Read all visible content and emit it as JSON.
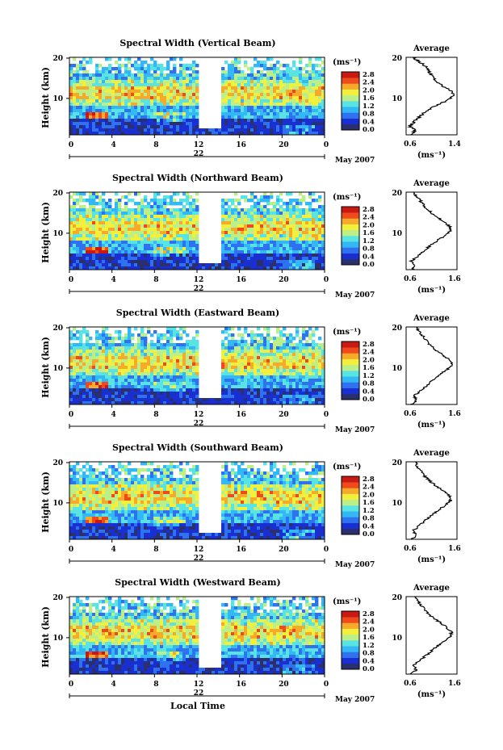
{
  "panels": [
    {
      "title": "Spectral Width (Vertical Beam)",
      "ylabel": "Height (km)",
      "yticks": [
        "20",
        "10"
      ],
      "xticks": [
        "0",
        "4",
        "8",
        "12",
        "16",
        "20",
        "0"
      ],
      "day": "22",
      "month": "May 2007",
      "cb_unit": "(ms⁻¹)",
      "cb_ticks": [
        "2.8",
        "2.4",
        "2.0",
        "1.6",
        "1.2",
        "0.8",
        "0.4",
        "0.0"
      ],
      "avg_title": "Average",
      "avg_yticks": [
        "20",
        "10"
      ],
      "avg_xticks": [
        "0.6",
        "1.4"
      ],
      "avg_xlabel": "(ms⁻¹)"
    },
    {
      "title": "Spectral Width (Northward Beam)",
      "ylabel": "Height (km)",
      "yticks": [
        "20",
        "10"
      ],
      "xticks": [
        "0",
        "4",
        "8",
        "12",
        "16",
        "20",
        "0"
      ],
      "day": "22",
      "month": "May 2007",
      "cb_unit": "(ms⁻¹)",
      "cb_ticks": [
        "2.8",
        "2.4",
        "2.0",
        "1.6",
        "1.2",
        "0.8",
        "0.4",
        "0.0"
      ],
      "avg_title": "Average",
      "avg_yticks": [
        "20",
        "10"
      ],
      "avg_xticks": [
        "0.6",
        "1.6"
      ],
      "avg_xlabel": "(ms⁻¹)"
    },
    {
      "title": "Spectral Width (Eastward Beam)",
      "ylabel": "Height (km)",
      "yticks": [
        "20",
        "10"
      ],
      "xticks": [
        "0",
        "4",
        "8",
        "12",
        "16",
        "20",
        "0"
      ],
      "day": "22",
      "month": "May 2007",
      "cb_unit": "(ms⁻¹)",
      "cb_ticks": [
        "2.8",
        "2.4",
        "2.0",
        "1.6",
        "1.2",
        "0.8",
        "0.4",
        "0.0"
      ],
      "avg_title": "Average",
      "avg_yticks": [
        "20",
        "10"
      ],
      "avg_xticks": [
        "0.6",
        "1.6"
      ],
      "avg_xlabel": "(ms⁻¹)"
    },
    {
      "title": "Spectral Width (Southward Beam)",
      "ylabel": "Height (km)",
      "yticks": [
        "20",
        "10"
      ],
      "xticks": [
        "0",
        "4",
        "8",
        "12",
        "16",
        "20",
        "0"
      ],
      "day": "22",
      "month": "May 2007",
      "cb_unit": "(ms⁻¹)",
      "cb_ticks": [
        "2.8",
        "2.4",
        "2.0",
        "1.6",
        "1.2",
        "0.8",
        "0.4",
        "0.0"
      ],
      "avg_title": "Average",
      "avg_yticks": [
        "20",
        "10"
      ],
      "avg_xticks": [
        "0.6",
        "1.6"
      ],
      "avg_xlabel": "(ms⁻¹)"
    },
    {
      "title": "Spectral Width (Westward Beam)",
      "ylabel": "Height (km)",
      "yticks": [
        "20",
        "10"
      ],
      "xticks": [
        "0",
        "4",
        "8",
        "12",
        "16",
        "20",
        "0"
      ],
      "day": "22",
      "month": "May 2007",
      "cb_unit": "(ms⁻¹)",
      "cb_ticks": [
        "2.8",
        "2.4",
        "2.0",
        "1.6",
        "1.2",
        "0.8",
        "0.4",
        "0.0"
      ],
      "avg_title": "Average",
      "avg_yticks": [
        "20",
        "10"
      ],
      "avg_xticks": [
        "0.6",
        "1.6"
      ],
      "avg_xlabel": "(ms⁻¹)"
    }
  ],
  "xlabel": "Local Time",
  "chart_data": [
    {
      "type": "heatmap",
      "title": "Spectral Width (Vertical Beam)",
      "ylabel": "Height (km)",
      "xlabel": "Local Time",
      "xlim": [
        0,
        24
      ],
      "ylim": [
        2,
        20
      ],
      "colorbar": {
        "label": "(ms⁻¹)",
        "range": [
          0.0,
          2.8
        ],
        "ticks": [
          0.0,
          0.4,
          0.8,
          1.2,
          1.6,
          2.0,
          2.4,
          2.8
        ]
      },
      "colormap": [
        "#2a2f6e",
        "#1a2fd0",
        "#2f72f0",
        "#34b7f5",
        "#59e3e3",
        "#bcef88",
        "#f2f03c",
        "#f7a92a",
        "#ef4a1c",
        "#c81a12"
      ],
      "data_gap_hours": [
        12.2,
        14.0
      ],
      "average_profile": {
        "xlim": [
          0.6,
          1.4
        ],
        "xlabel": "(ms⁻¹)",
        "height_km": [
          2,
          3,
          4,
          5,
          6,
          7,
          8,
          9,
          10,
          11,
          12,
          13,
          14,
          15,
          16,
          17,
          18,
          19,
          20
        ],
        "width": [
          0.68,
          0.74,
          0.66,
          0.72,
          0.8,
          0.88,
          0.98,
          1.1,
          1.24,
          1.34,
          1.33,
          1.22,
          1.12,
          1.05,
          1.0,
          0.95,
          0.9,
          0.8,
          0.7
        ]
      }
    },
    {
      "type": "heatmap",
      "title": "Spectral Width (Northward Beam)",
      "ylabel": "Height (km)",
      "xlabel": "Local Time",
      "xlim": [
        0,
        24
      ],
      "ylim": [
        2,
        20
      ],
      "colorbar": {
        "label": "(ms⁻¹)",
        "range": [
          0.0,
          2.8
        ],
        "ticks": [
          0.0,
          0.4,
          0.8,
          1.2,
          1.6,
          2.0,
          2.4,
          2.8
        ]
      },
      "data_gap_hours": [
        12.2,
        14.0
      ],
      "average_profile": {
        "xlim": [
          0.6,
          1.6
        ],
        "xlabel": "(ms⁻¹)",
        "height_km": [
          2,
          3,
          4,
          5,
          6,
          7,
          8,
          9,
          10,
          11,
          12,
          13,
          14,
          15,
          16,
          17,
          18,
          19,
          20
        ],
        "width": [
          0.72,
          0.78,
          0.7,
          0.82,
          0.92,
          1.02,
          1.12,
          1.24,
          1.38,
          1.48,
          1.46,
          1.36,
          1.24,
          1.12,
          1.02,
          0.94,
          0.88,
          0.8,
          0.76
        ]
      }
    },
    {
      "type": "heatmap",
      "title": "Spectral Width (Eastward Beam)",
      "ylabel": "Height (km)",
      "xlabel": "Local Time",
      "xlim": [
        0,
        24
      ],
      "ylim": [
        2,
        20
      ],
      "colorbar": {
        "label": "(ms⁻¹)",
        "range": [
          0.0,
          2.8
        ],
        "ticks": [
          0.0,
          0.4,
          0.8,
          1.2,
          1.6,
          2.0,
          2.4,
          2.8
        ]
      },
      "data_gap_hours": [
        12.2,
        14.0
      ],
      "average_profile": {
        "xlim": [
          0.6,
          1.6
        ],
        "xlabel": "(ms⁻¹)",
        "height_km": [
          2,
          3,
          4,
          5,
          6,
          7,
          8,
          9,
          10,
          11,
          12,
          13,
          14,
          15,
          16,
          17,
          18,
          19,
          20
        ],
        "width": [
          0.7,
          0.8,
          0.76,
          0.86,
          0.96,
          1.06,
          1.16,
          1.26,
          1.4,
          1.5,
          1.48,
          1.38,
          1.26,
          1.14,
          1.06,
          0.98,
          0.92,
          0.86,
          0.8
        ]
      }
    },
    {
      "type": "heatmap",
      "title": "Spectral Width (Southward Beam)",
      "ylabel": "Height (km)",
      "xlabel": "Local Time",
      "xlim": [
        0,
        24
      ],
      "ylim": [
        2,
        20
      ],
      "colorbar": {
        "label": "(ms⁻¹)",
        "range": [
          0.0,
          2.8
        ],
        "ticks": [
          0.0,
          0.4,
          0.8,
          1.2,
          1.6,
          2.0,
          2.4,
          2.8
        ]
      },
      "data_gap_hours": [
        12.2,
        14.0
      ],
      "average_profile": {
        "xlim": [
          0.6,
          1.6
        ],
        "xlabel": "(ms⁻¹)",
        "height_km": [
          2,
          3,
          4,
          5,
          6,
          7,
          8,
          9,
          10,
          11,
          12,
          13,
          14,
          15,
          16,
          17,
          18,
          19,
          20
        ],
        "width": [
          0.72,
          0.8,
          0.74,
          0.84,
          0.94,
          1.04,
          1.14,
          1.26,
          1.38,
          1.48,
          1.47,
          1.36,
          1.24,
          1.12,
          1.02,
          0.94,
          0.88,
          0.82,
          0.78
        ]
      }
    },
    {
      "type": "heatmap",
      "title": "Spectral Width (Westward Beam)",
      "ylabel": "Height (km)",
      "xlabel": "Local Time",
      "xlim": [
        0,
        24
      ],
      "ylim": [
        2,
        20
      ],
      "colorbar": {
        "label": "(ms⁻¹)",
        "range": [
          0.0,
          2.8
        ],
        "ticks": [
          0.0,
          0.4,
          0.8,
          1.2,
          1.6,
          2.0,
          2.4,
          2.8
        ]
      },
      "data_gap_hours": [
        12.2,
        14.0
      ],
      "average_profile": {
        "xlim": [
          0.6,
          1.6
        ],
        "xlabel": "(ms⁻¹)",
        "height_km": [
          2,
          3,
          4,
          5,
          6,
          7,
          8,
          9,
          10,
          11,
          12,
          13,
          14,
          15,
          16,
          17,
          18,
          19,
          20
        ],
        "width": [
          0.7,
          0.8,
          0.74,
          0.86,
          0.96,
          1.06,
          1.16,
          1.28,
          1.4,
          1.5,
          1.48,
          1.38,
          1.26,
          1.14,
          1.04,
          0.96,
          0.9,
          0.82,
          0.76
        ]
      }
    }
  ]
}
